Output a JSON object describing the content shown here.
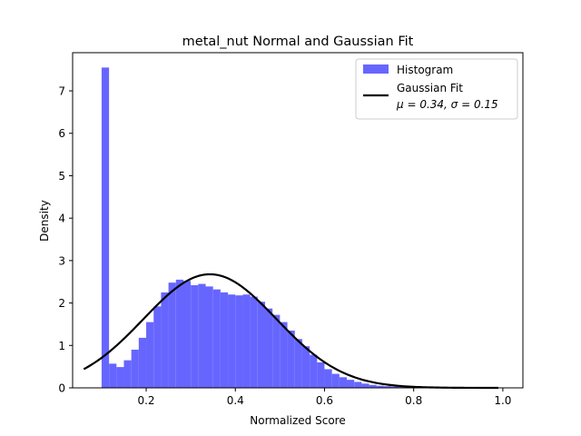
{
  "chart_data": {
    "type": "bar",
    "title": "metal_nut Normal and Gaussian Fit",
    "xlabel": "Normalized Score",
    "ylabel": "Density",
    "xlim": [
      0.035,
      1.045
    ],
    "ylim": [
      0,
      7.9
    ],
    "xticks": [
      "0.2",
      "0.4",
      "0.6",
      "0.8",
      "1.0"
    ],
    "yticks": [
      "0",
      "1",
      "2",
      "3",
      "4",
      "5",
      "6",
      "7"
    ],
    "grid": false,
    "legend_position": "top-right",
    "histogram": {
      "name": "Histogram",
      "color": "#6666ff",
      "bin_width": 0.0167,
      "bin_starts": [
        0.1,
        0.1167,
        0.1333,
        0.15,
        0.1667,
        0.1833,
        0.2,
        0.2167,
        0.2333,
        0.25,
        0.2667,
        0.2833,
        0.3,
        0.3167,
        0.3333,
        0.35,
        0.3667,
        0.3833,
        0.4,
        0.4167,
        0.4333,
        0.45,
        0.4667,
        0.4833,
        0.5,
        0.5167,
        0.5333,
        0.55,
        0.5667,
        0.5833,
        0.6,
        0.6167,
        0.6333,
        0.65,
        0.6667,
        0.6833,
        0.7,
        0.7167,
        0.7333,
        0.75,
        0.7667,
        0.7833,
        0.8,
        0.8167,
        0.8333,
        0.85,
        0.8667,
        0.8833,
        0.9,
        0.9167,
        0.9333,
        0.95,
        0.9667,
        0.9833
      ],
      "values": [
        7.55,
        0.57,
        0.49,
        0.65,
        0.9,
        1.18,
        1.55,
        1.92,
        2.25,
        2.48,
        2.55,
        2.52,
        2.42,
        2.45,
        2.39,
        2.32,
        2.25,
        2.2,
        2.18,
        2.2,
        2.15,
        2.03,
        1.87,
        1.72,
        1.55,
        1.35,
        1.15,
        0.98,
        0.78,
        0.6,
        0.44,
        0.33,
        0.25,
        0.19,
        0.14,
        0.1,
        0.07,
        0.05,
        0.04,
        0.03,
        0.02,
        0.02,
        0.01,
        0.01,
        0.01,
        0.01,
        0.01,
        0.0,
        0.0,
        0.0,
        0.0,
        0.0,
        0.0,
        0.0
      ]
    },
    "fit": {
      "name": "Gaussian Fit",
      "label_line2": "μ = 0.34,  σ = 0.15",
      "color": "#000000",
      "mu": 0.343,
      "sigma": 0.149,
      "x_range": [
        0.06,
        0.99
      ]
    }
  }
}
